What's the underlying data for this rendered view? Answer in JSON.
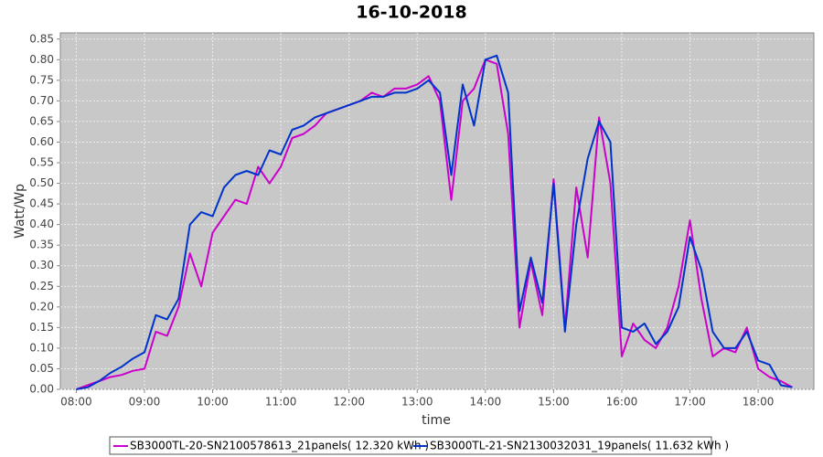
{
  "chart_data": {
    "type": "line",
    "title": "16-10-2018",
    "x_label": "time",
    "y_label": "Watt/Wp",
    "x": [
      "08:00",
      "08:10",
      "08:20",
      "08:30",
      "08:40",
      "08:50",
      "09:00",
      "09:10",
      "09:20",
      "09:30",
      "09:40",
      "09:50",
      "10:00",
      "10:10",
      "10:20",
      "10:30",
      "10:40",
      "10:50",
      "11:00",
      "11:10",
      "11:20",
      "11:30",
      "11:40",
      "11:50",
      "12:00",
      "12:10",
      "12:20",
      "12:30",
      "12:40",
      "12:50",
      "13:00",
      "13:10",
      "13:20",
      "13:30",
      "13:40",
      "13:50",
      "14:00",
      "14:10",
      "14:20",
      "14:30",
      "14:40",
      "14:50",
      "15:00",
      "15:10",
      "15:20",
      "15:30",
      "15:40",
      "15:50",
      "16:00",
      "16:10",
      "16:20",
      "16:30",
      "16:40",
      "16:50",
      "17:00",
      "17:10",
      "17:20",
      "17:30",
      "17:40",
      "17:50",
      "18:00",
      "18:10",
      "18:20",
      "18:30"
    ],
    "series": [
      {
        "name": "SB3000TL-20-SN2100578613_21panels( 12.320 kWh )",
        "color": "#cc00cc",
        "values": [
          0.0,
          0.01,
          0.02,
          0.03,
          0.035,
          0.045,
          0.05,
          0.14,
          0.13,
          0.2,
          0.33,
          0.25,
          0.38,
          0.42,
          0.46,
          0.45,
          0.54,
          0.5,
          0.54,
          0.61,
          0.62,
          0.64,
          0.67,
          0.68,
          0.69,
          0.7,
          0.72,
          0.71,
          0.73,
          0.73,
          0.74,
          0.76,
          0.7,
          0.46,
          0.7,
          0.73,
          0.8,
          0.79,
          0.62,
          0.15,
          0.31,
          0.18,
          0.51,
          0.15,
          0.49,
          0.32,
          0.66,
          0.5,
          0.08,
          0.16,
          0.12,
          0.1,
          0.15,
          0.25,
          0.41,
          0.22,
          0.08,
          0.1,
          0.09,
          0.15,
          0.05,
          0.03,
          0.02,
          0.005
        ]
      },
      {
        "name": "SB3000TL-21-SN2130032031_19panels( 11.632 kWh )",
        "color": "#0033cc",
        "values": [
          0.0,
          0.005,
          0.02,
          0.04,
          0.055,
          0.075,
          0.09,
          0.18,
          0.17,
          0.22,
          0.4,
          0.43,
          0.42,
          0.49,
          0.52,
          0.53,
          0.52,
          0.58,
          0.57,
          0.63,
          0.64,
          0.66,
          0.67,
          0.68,
          0.69,
          0.7,
          0.71,
          0.71,
          0.72,
          0.72,
          0.73,
          0.75,
          0.72,
          0.52,
          0.74,
          0.64,
          0.8,
          0.81,
          0.72,
          0.19,
          0.32,
          0.21,
          0.5,
          0.14,
          0.4,
          0.56,
          0.65,
          0.6,
          0.15,
          0.14,
          0.16,
          0.11,
          0.14,
          0.2,
          0.37,
          0.29,
          0.14,
          0.1,
          0.1,
          0.14,
          0.07,
          0.06,
          0.01,
          0.005
        ]
      }
    ],
    "xlim": [
      "07:46",
      "18:49"
    ],
    "xticks": [
      "08:00",
      "09:00",
      "10:00",
      "11:00",
      "12:00",
      "13:00",
      "14:00",
      "15:00",
      "16:00",
      "17:00",
      "18:00"
    ],
    "ylim": [
      0,
      0.865
    ],
    "yticks": [
      {
        "value": 0,
        "label": "0.00"
      },
      {
        "value": 0.05,
        "label": "0.05"
      },
      {
        "value": 0.1,
        "label": "0.10"
      },
      {
        "value": 0.15,
        "label": "0.15"
      },
      {
        "value": 0.2,
        "label": "0.20"
      },
      {
        "value": 0.25,
        "label": "0.25"
      },
      {
        "value": 0.3,
        "label": "0.30"
      },
      {
        "value": 0.35,
        "label": "0.35"
      },
      {
        "value": 0.4,
        "label": "0.40"
      },
      {
        "value": 0.45,
        "label": "0.45"
      },
      {
        "value": 0.5,
        "label": "0.50"
      },
      {
        "value": 0.55,
        "label": "0.55"
      },
      {
        "value": 0.6,
        "label": "0.60"
      },
      {
        "value": 0.65,
        "label": "0.65"
      },
      {
        "value": 0.7,
        "label": "0.70"
      },
      {
        "value": 0.75,
        "label": "0.75"
      },
      {
        "value": 0.8,
        "label": "0.80"
      },
      {
        "value": 0.85,
        "label": "0.85"
      }
    ],
    "grid": true
  }
}
